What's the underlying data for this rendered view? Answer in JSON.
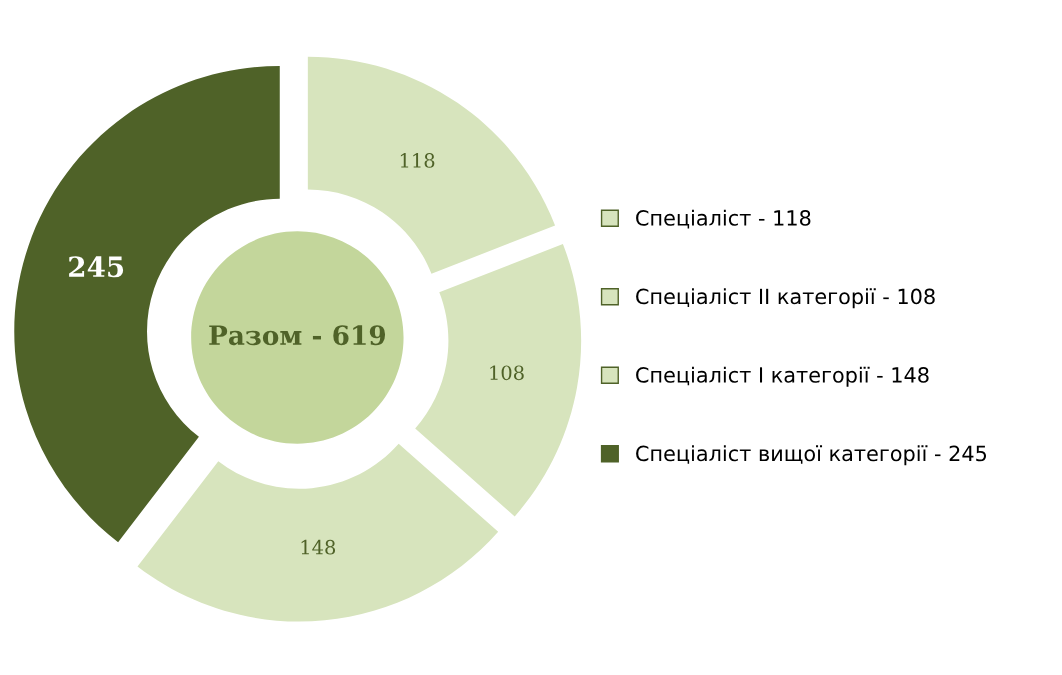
{
  "chart_data": {
    "type": "donut",
    "categories": [
      "Спеціаліст - 118",
      "Спеціаліст II категорії - 108",
      "Спеціаліст I категорії - 148",
      "Спеціаліст вищої категорії - 245"
    ],
    "values": [
      118,
      108,
      148,
      245
    ],
    "colors": [
      "#d7e4bd",
      "#d7e4bd",
      "#d7e4bd",
      "#4f6228"
    ],
    "data_labels": true,
    "legend": "right",
    "annotations": [
      "Разом - 619"
    ]
  }
}
